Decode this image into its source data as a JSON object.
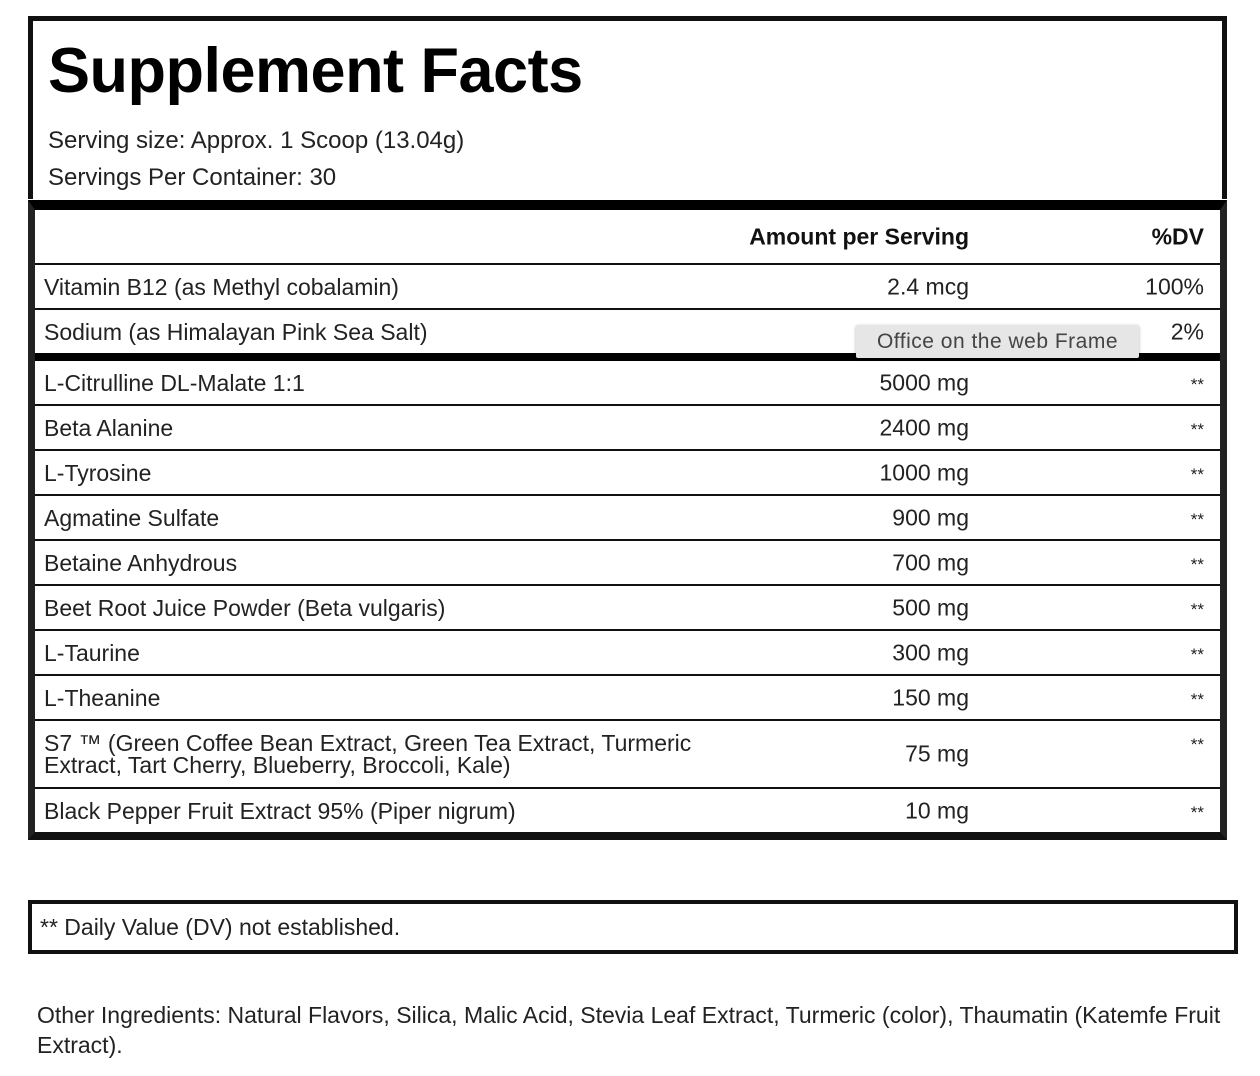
{
  "title": "Supplement Facts",
  "serving_size": "Serving size: Approx. 1 Scoop (13.04g)",
  "servings_per_container": "Servings Per Container: 30",
  "header": {
    "amount": "Amount per Serving",
    "dv": "%DV"
  },
  "vitamins": [
    {
      "name": "Vitamin B12 (as Methyl cobalamin)",
      "amount": "2.4 mcg",
      "dv": "100%"
    },
    {
      "name": "Sodium (as Himalayan Pink Sea Salt)",
      "amount": "",
      "dv": "2%"
    }
  ],
  "ingredients": [
    {
      "name": "L-Citrulline DL-Malate 1:1",
      "amount": "5000 mg",
      "dv": "**"
    },
    {
      "name": "Beta Alanine",
      "amount": "2400 mg",
      "dv": "**"
    },
    {
      "name": "L-Tyrosine",
      "amount": "1000 mg",
      "dv": "**"
    },
    {
      "name": "Agmatine Sulfate",
      "amount": "900 mg",
      "dv": "**"
    },
    {
      "name": "Betaine Anhydrous",
      "amount": "700 mg",
      "dv": "**"
    },
    {
      "name": "Beet Root Juice Powder (Beta vulgaris)",
      "amount": "500 mg",
      "dv": "**"
    },
    {
      "name": "L-Taurine",
      "amount": "300 mg",
      "dv": "**"
    },
    {
      "name": "L-Theanine",
      "amount": "150 mg",
      "dv": "**"
    },
    {
      "name": "S7 ™ (Green Coffee Bean Extract, Green Tea Extract, Turmeric Extract, Tart Cherry, Blueberry, Broccoli, Kale)",
      "amount": "75 mg",
      "dv": "**"
    },
    {
      "name": "Black Pepper Fruit Extract 95% (Piper nigrum)",
      "amount": "10 mg",
      "dv": "**"
    }
  ],
  "tooltip": "Office on the web Frame",
  "footnote": "** Daily Value (DV) not established.",
  "other_ingredients": "Other Ingredients: Natural Flavors, Silica, Malic Acid, Stevia Leaf Extract, Turmeric (color), Thaumatin (Katemfe Fruit Extract)."
}
